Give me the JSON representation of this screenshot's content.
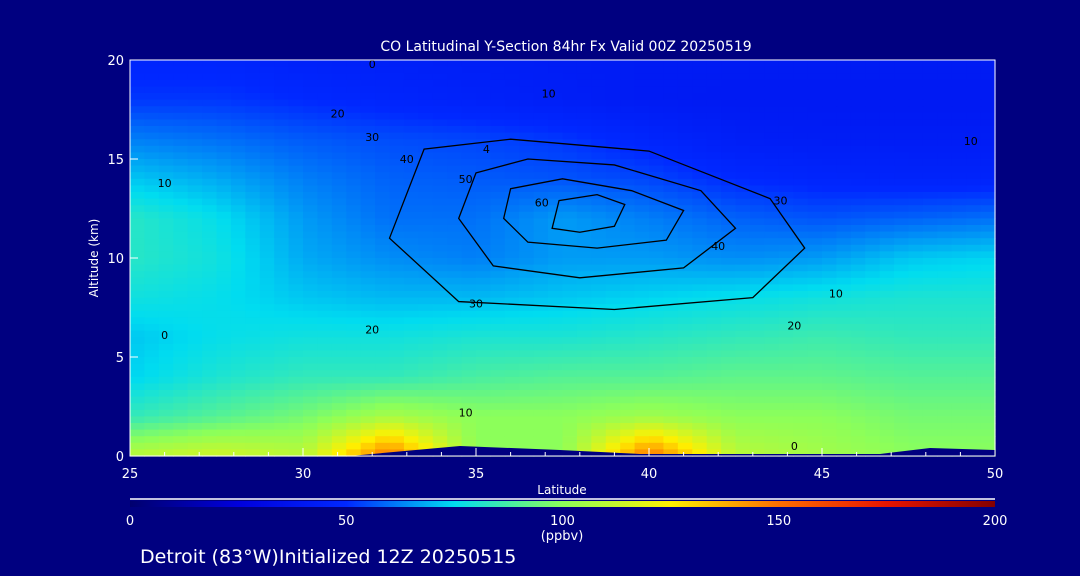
{
  "chart_data": {
    "type": "heatmap",
    "title": "CO Latitudinal Y-Section 84hr  Fx Valid 00Z 20250519",
    "xlabel": "Latitude",
    "ylabel": "Altitude (km)",
    "xlim": [
      25,
      50
    ],
    "ylim": [
      0,
      20
    ],
    "xticks": [
      "25",
      "30",
      "35",
      "40",
      "45",
      "50"
    ],
    "xtick_values": [
      25,
      30,
      35,
      40,
      45,
      50
    ],
    "yticks": [
      "0",
      "5",
      "10",
      "15",
      "20"
    ],
    "ytick_values": [
      0,
      5,
      10,
      15,
      20
    ],
    "grid_lat": [
      25,
      27.5,
      30,
      32.5,
      35,
      37.5,
      40,
      42.5,
      45,
      47.5,
      50
    ],
    "grid_alt": [
      20,
      18,
      16,
      14,
      12,
      10,
      8,
      6,
      4,
      2,
      0
    ],
    "values": [
      [
        48,
        48,
        46,
        45,
        44,
        43,
        42,
        42,
        42,
        42,
        42
      ],
      [
        52,
        52,
        50,
        48,
        46,
        44,
        42,
        41,
        41,
        41,
        41
      ],
      [
        62,
        60,
        57,
        55,
        54,
        52,
        48,
        44,
        43,
        43,
        43
      ],
      [
        72,
        68,
        62,
        58,
        57,
        56,
        54,
        50,
        48,
        47,
        47
      ],
      [
        82,
        76,
        66,
        60,
        60,
        66,
        62,
        58,
        56,
        58,
        60
      ],
      [
        82,
        78,
        68,
        64,
        62,
        66,
        66,
        64,
        66,
        72,
        74
      ],
      [
        78,
        76,
        72,
        70,
        70,
        72,
        74,
        76,
        78,
        80,
        80
      ],
      [
        72,
        76,
        78,
        78,
        80,
        80,
        82,
        84,
        86,
        84,
        84
      ],
      [
        74,
        80,
        84,
        84,
        88,
        90,
        90,
        92,
        92,
        90,
        90
      ],
      [
        84,
        90,
        96,
        106,
        100,
        100,
        104,
        100,
        100,
        96,
        96
      ],
      [
        110,
        115,
        110,
        150,
        100,
        100,
        150,
        110,
        105,
        100,
        100
      ]
    ],
    "contours": [
      {
        "level": "60",
        "points": [
          [
            37.2,
            11.5
          ],
          [
            37.4,
            12.9
          ],
          [
            38.5,
            13.2
          ],
          [
            39.3,
            12.7
          ],
          [
            39.0,
            11.6
          ],
          [
            38,
            11.3
          ]
        ]
      },
      {
        "level": "50",
        "points": [
          [
            35.8,
            12
          ],
          [
            36,
            13.5
          ],
          [
            37.5,
            14
          ],
          [
            39.5,
            13.4
          ],
          [
            41,
            12.4
          ],
          [
            40.5,
            10.9
          ],
          [
            38.5,
            10.5
          ],
          [
            36.5,
            10.8
          ]
        ]
      },
      {
        "level": "40",
        "points": [
          [
            34.5,
            12
          ],
          [
            35,
            14.3
          ],
          [
            36.5,
            15
          ],
          [
            39,
            14.7
          ],
          [
            41.5,
            13.4
          ],
          [
            42.5,
            11.5
          ],
          [
            41,
            9.5
          ],
          [
            38,
            9
          ],
          [
            35.5,
            9.6
          ]
        ]
      },
      {
        "level": "30",
        "points": [
          [
            32.5,
            11
          ],
          [
            33.5,
            15.5
          ],
          [
            36,
            16
          ],
          [
            40,
            15.4
          ],
          [
            43.5,
            13
          ],
          [
            44.5,
            10.5
          ],
          [
            43,
            8
          ],
          [
            39,
            7.4
          ],
          [
            34.5,
            7.8
          ]
        ]
      }
    ],
    "contour_labels": [
      {
        "text": "0",
        "lat": 26.0,
        "alt": 6.1
      },
      {
        "text": "0",
        "lat": 44.2,
        "alt": 0.5
      },
      {
        "text": "0",
        "lat": 32.0,
        "alt": 19.8
      },
      {
        "text": "10",
        "lat": 26.0,
        "alt": 13.8
      },
      {
        "text": "10",
        "lat": 34.7,
        "alt": 2.2
      },
      {
        "text": "10",
        "lat": 45.4,
        "alt": 8.2
      },
      {
        "text": "10",
        "lat": 37.1,
        "alt": 18.3
      },
      {
        "text": "10",
        "lat": 49.3,
        "alt": 15.9
      },
      {
        "text": "20",
        "lat": 31.0,
        "alt": 17.3
      },
      {
        "text": "20",
        "lat": 32.0,
        "alt": 6.4
      },
      {
        "text": "20",
        "lat": 44.2,
        "alt": 6.6
      },
      {
        "text": "30",
        "lat": 32.0,
        "alt": 16.1
      },
      {
        "text": "30",
        "lat": 35.0,
        "alt": 7.7
      },
      {
        "text": "30",
        "lat": 43.8,
        "alt": 12.9
      },
      {
        "text": "40",
        "lat": 33.0,
        "alt": 15.0
      },
      {
        "text": "40",
        "lat": 42.0,
        "alt": 10.6
      },
      {
        "text": "50",
        "lat": 34.7,
        "alt": 14.0
      },
      {
        "text": "60",
        "lat": 36.9,
        "alt": 12.8
      },
      {
        "text": "4",
        "lat": 35.3,
        "alt": 15.5
      }
    ],
    "colorbar": {
      "ticks": [
        "0",
        "50",
        "100",
        "150",
        "200"
      ],
      "tick_values": [
        0,
        50,
        100,
        150,
        200
      ],
      "label": "(ppbv)",
      "range": [
        0,
        200
      ]
    }
  },
  "footer": {
    "text": "Detroit (83°W)Initialized 12Z 20250515"
  }
}
